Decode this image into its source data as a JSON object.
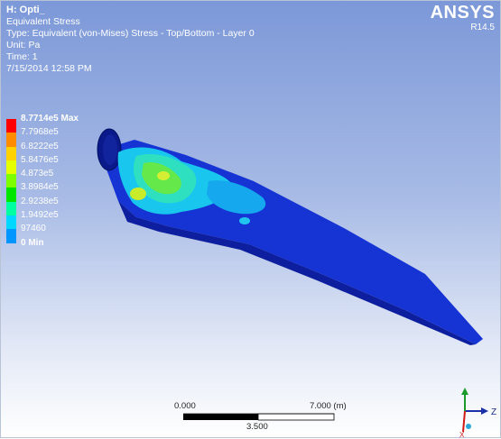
{
  "header": {
    "title": "H: Opti_",
    "result": "Equivalent Stress",
    "type": "Type: Equivalent (von-Mises) Stress - Top/Bottom - Layer 0",
    "unit": "Unit: Pa",
    "time": "Time: 1",
    "timestamp": "7/15/2014 12:58 PM"
  },
  "logo": {
    "word": "ANSYS",
    "version": "R14.5"
  },
  "legend": {
    "labels": [
      "8.7714e5 Max",
      "7.7968e5",
      "6.8222e5",
      "5.8476e5",
      "4.873e5",
      "3.8984e5",
      "2.9238e5",
      "1.9492e5",
      "97460",
      "0 Min"
    ],
    "colors": [
      "#ff0000",
      "#ff8c00",
      "#ffd200",
      "#e6ff00",
      "#7dff00",
      "#00e600",
      "#00ffa0",
      "#00d8ff",
      "#0096ff",
      "#0000ff"
    ]
  },
  "scale_bar": {
    "left_label": "0.000",
    "right_label": "7.000 (m)",
    "mid_label": "3.500"
  },
  "triad": {
    "z_label": "Z",
    "x_label": "X"
  }
}
